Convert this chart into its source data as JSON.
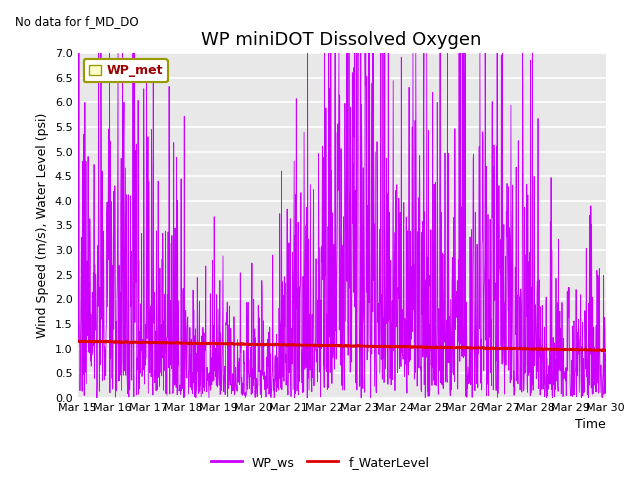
{
  "title": "WP miniDOT Dissolved Oxygen",
  "top_left_text": "No data for f_MD_DO",
  "ylabel": "Wind Speed (m/s), Water Level (psi)",
  "xlabel": "Time",
  "legend_box_label": "WP_met",
  "legend_box_color": "#ffffcc",
  "legend_box_edge_color": "#999900",
  "legend_labels": [
    "WP_ws",
    "f_WaterLevel"
  ],
  "ws_color": "#cc00ff",
  "wl_color": "#dd0000",
  "ylim": [
    0.0,
    7.0
  ],
  "yticks": [
    0.0,
    0.5,
    1.0,
    1.5,
    2.0,
    2.5,
    3.0,
    3.5,
    4.0,
    4.5,
    5.0,
    5.5,
    6.0,
    6.5,
    7.0
  ],
  "axes_bg_color": "#e8e8e8",
  "grid_color": "#ffffff",
  "title_fontsize": 13,
  "label_fontsize": 9,
  "tick_fontsize": 8
}
